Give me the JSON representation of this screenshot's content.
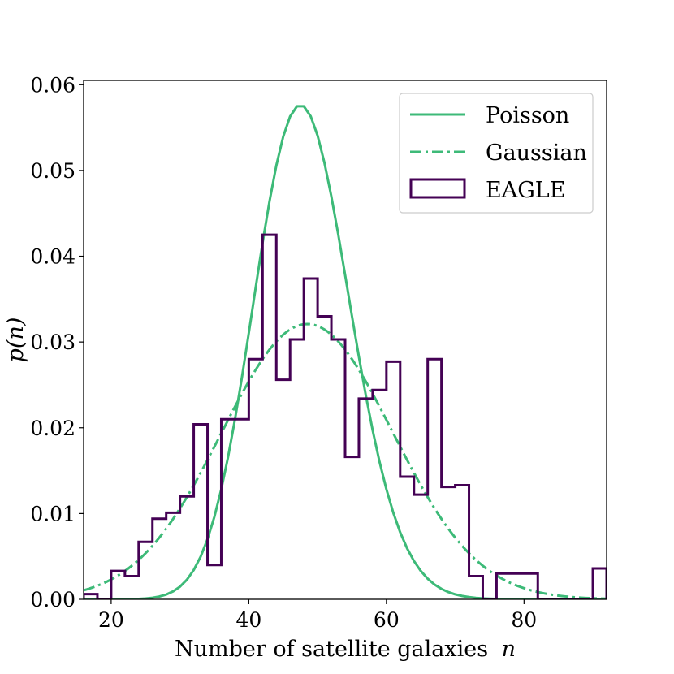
{
  "chart_data": {
    "type": "line",
    "title": "",
    "xlabel": "Number of satellite galaxies",
    "xlabel_var": "n",
    "ylabel_var": "p(n)",
    "xlim": [
      16,
      92
    ],
    "ylim": [
      0,
      0.0605
    ],
    "xticks": [
      20,
      40,
      60,
      80
    ],
    "xtick_labels": [
      "20",
      "40",
      "60",
      "80"
    ],
    "yticks": [
      0,
      0.01,
      0.02,
      0.03,
      0.04,
      0.05,
      0.06
    ],
    "ytick_labels": [
      "0.00",
      "0.01",
      "0.02",
      "0.03",
      "0.04",
      "0.05",
      "0.06"
    ],
    "grid": false,
    "legend_position": "top-right",
    "colors": {
      "poisson": "#3dba78",
      "gaussian": "#3dba78",
      "eagle": "#440154"
    },
    "poisson": {
      "name": "Poisson",
      "mean": 48
    },
    "gaussian": {
      "name": "Gaussian",
      "mean": 48.5,
      "peak": 0.0321
    },
    "eagle": {
      "name": "EAGLE",
      "bin_edges": [
        16,
        18,
        20,
        22,
        24,
        26,
        28,
        30,
        32,
        34,
        36,
        38,
        40,
        42,
        44,
        46,
        48,
        50,
        52,
        54,
        56,
        58,
        60,
        62,
        64,
        66,
        68,
        70,
        72,
        74,
        76,
        78,
        80,
        82,
        84,
        86,
        88,
        90,
        92
      ],
      "counts": [
        0.0006,
        0,
        0.0033,
        0.0027,
        0.0067,
        0.0094,
        0.0101,
        0.012,
        0.0204,
        0.004,
        0.021,
        0.021,
        0.028,
        0.0425,
        0.0256,
        0.0303,
        0.0374,
        0.033,
        0.0303,
        0.0166,
        0.0234,
        0.0244,
        0.0277,
        0.0143,
        0.0122,
        0.028,
        0.0131,
        0.0133,
        0.0027,
        0,
        0.003,
        0.003,
        0.003,
        0,
        0,
        0,
        0,
        0.0036
      ]
    }
  }
}
